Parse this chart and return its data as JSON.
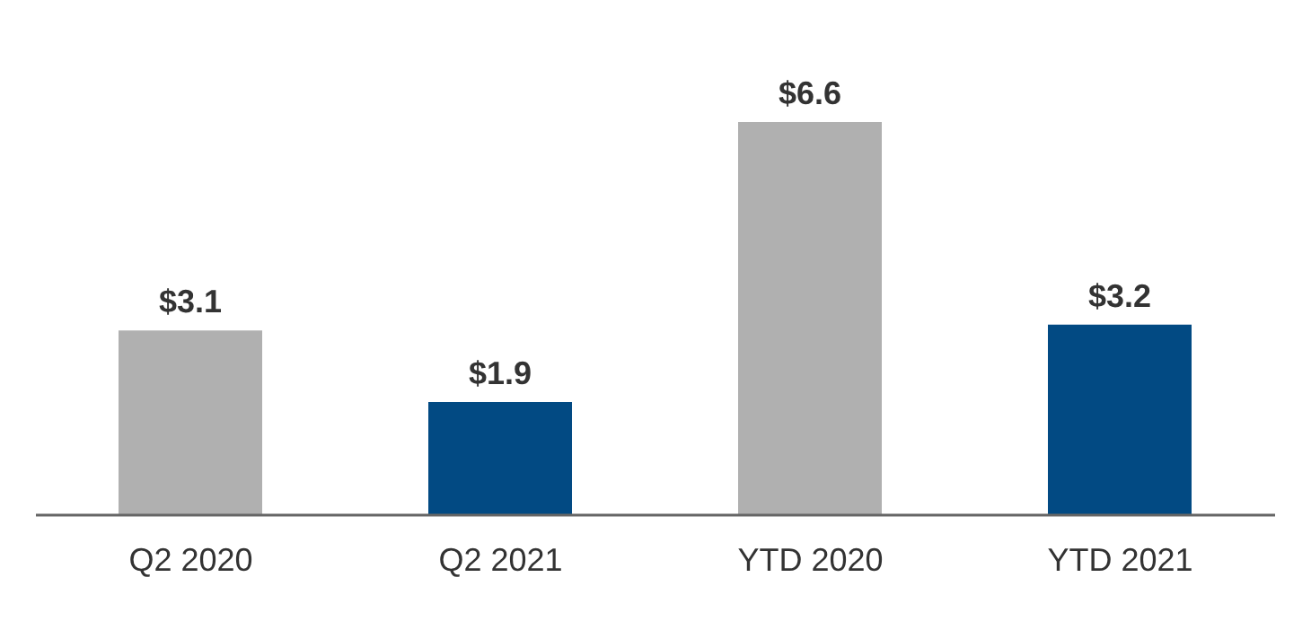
{
  "chart_data": {
    "type": "bar",
    "categories": [
      "Q2 2020",
      "Q2 2021",
      "YTD 2020",
      "YTD 2021"
    ],
    "values": [
      3.1,
      1.9,
      6.6,
      3.2
    ],
    "colors": [
      "#b0b0b0",
      "#024a83",
      "#b0b0b0",
      "#024a83"
    ],
    "value_labels": [
      "$3.1",
      "$1.9",
      "$6.6",
      "$3.2"
    ],
    "grid": false,
    "legend": false
  }
}
